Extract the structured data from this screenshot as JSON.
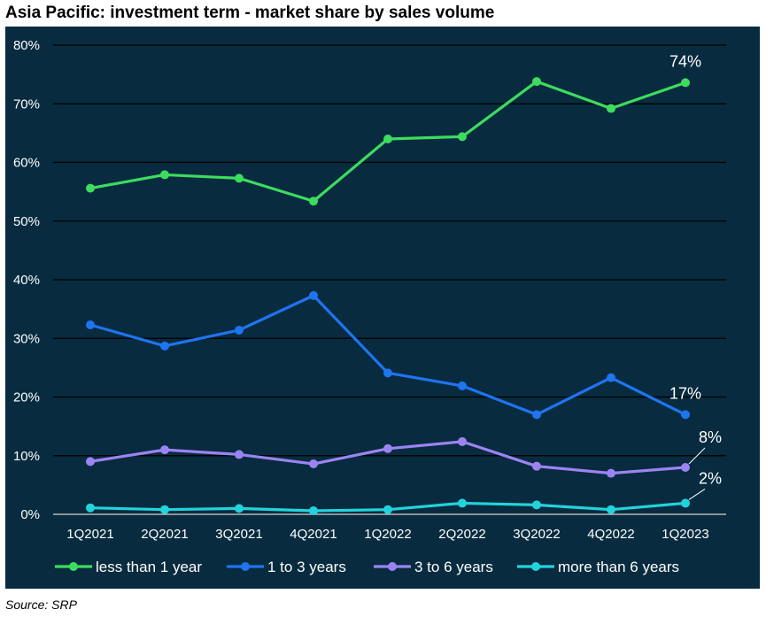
{
  "title": "Asia Pacific: investment term - market share by sales volume",
  "source": "Source: SRP",
  "colors": {
    "background": "#082b3f",
    "grid": "#000000"
  },
  "chart_data": {
    "type": "line",
    "categories": [
      "1Q2021",
      "2Q2021",
      "3Q2021",
      "4Q2021",
      "1Q2022",
      "2Q2022",
      "3Q2022",
      "4Q2022",
      "1Q2023"
    ],
    "ylim": [
      0,
      80
    ],
    "yticks": [
      "0%",
      "10%",
      "20%",
      "30%",
      "40%",
      "50%",
      "60%",
      "70%",
      "80%"
    ],
    "grid": true,
    "legend_position": "bottom",
    "series": [
      {
        "name": "less than 1 year",
        "color": "#3ddc5e",
        "values": [
          55.6,
          57.9,
          57.3,
          53.4,
          64.0,
          64.4,
          73.8,
          69.2,
          73.6
        ],
        "end_label": "74%"
      },
      {
        "name": "1 to 3 years",
        "color": "#1f74f0",
        "values": [
          32.3,
          28.7,
          31.4,
          37.3,
          24.1,
          21.9,
          17.0,
          23.3,
          17.0
        ],
        "end_label": "17%"
      },
      {
        "name": "3 to 6 years",
        "color": "#9b84f2",
        "values": [
          9.0,
          11.0,
          10.2,
          8.6,
          11.2,
          12.4,
          8.2,
          7.0,
          8.0
        ],
        "end_label": "8%"
      },
      {
        "name": "more than 6 years",
        "color": "#22d3dc",
        "values": [
          1.1,
          0.8,
          1.0,
          0.6,
          0.8,
          1.9,
          1.6,
          0.8,
          1.9
        ],
        "end_label": "2%"
      }
    ]
  }
}
